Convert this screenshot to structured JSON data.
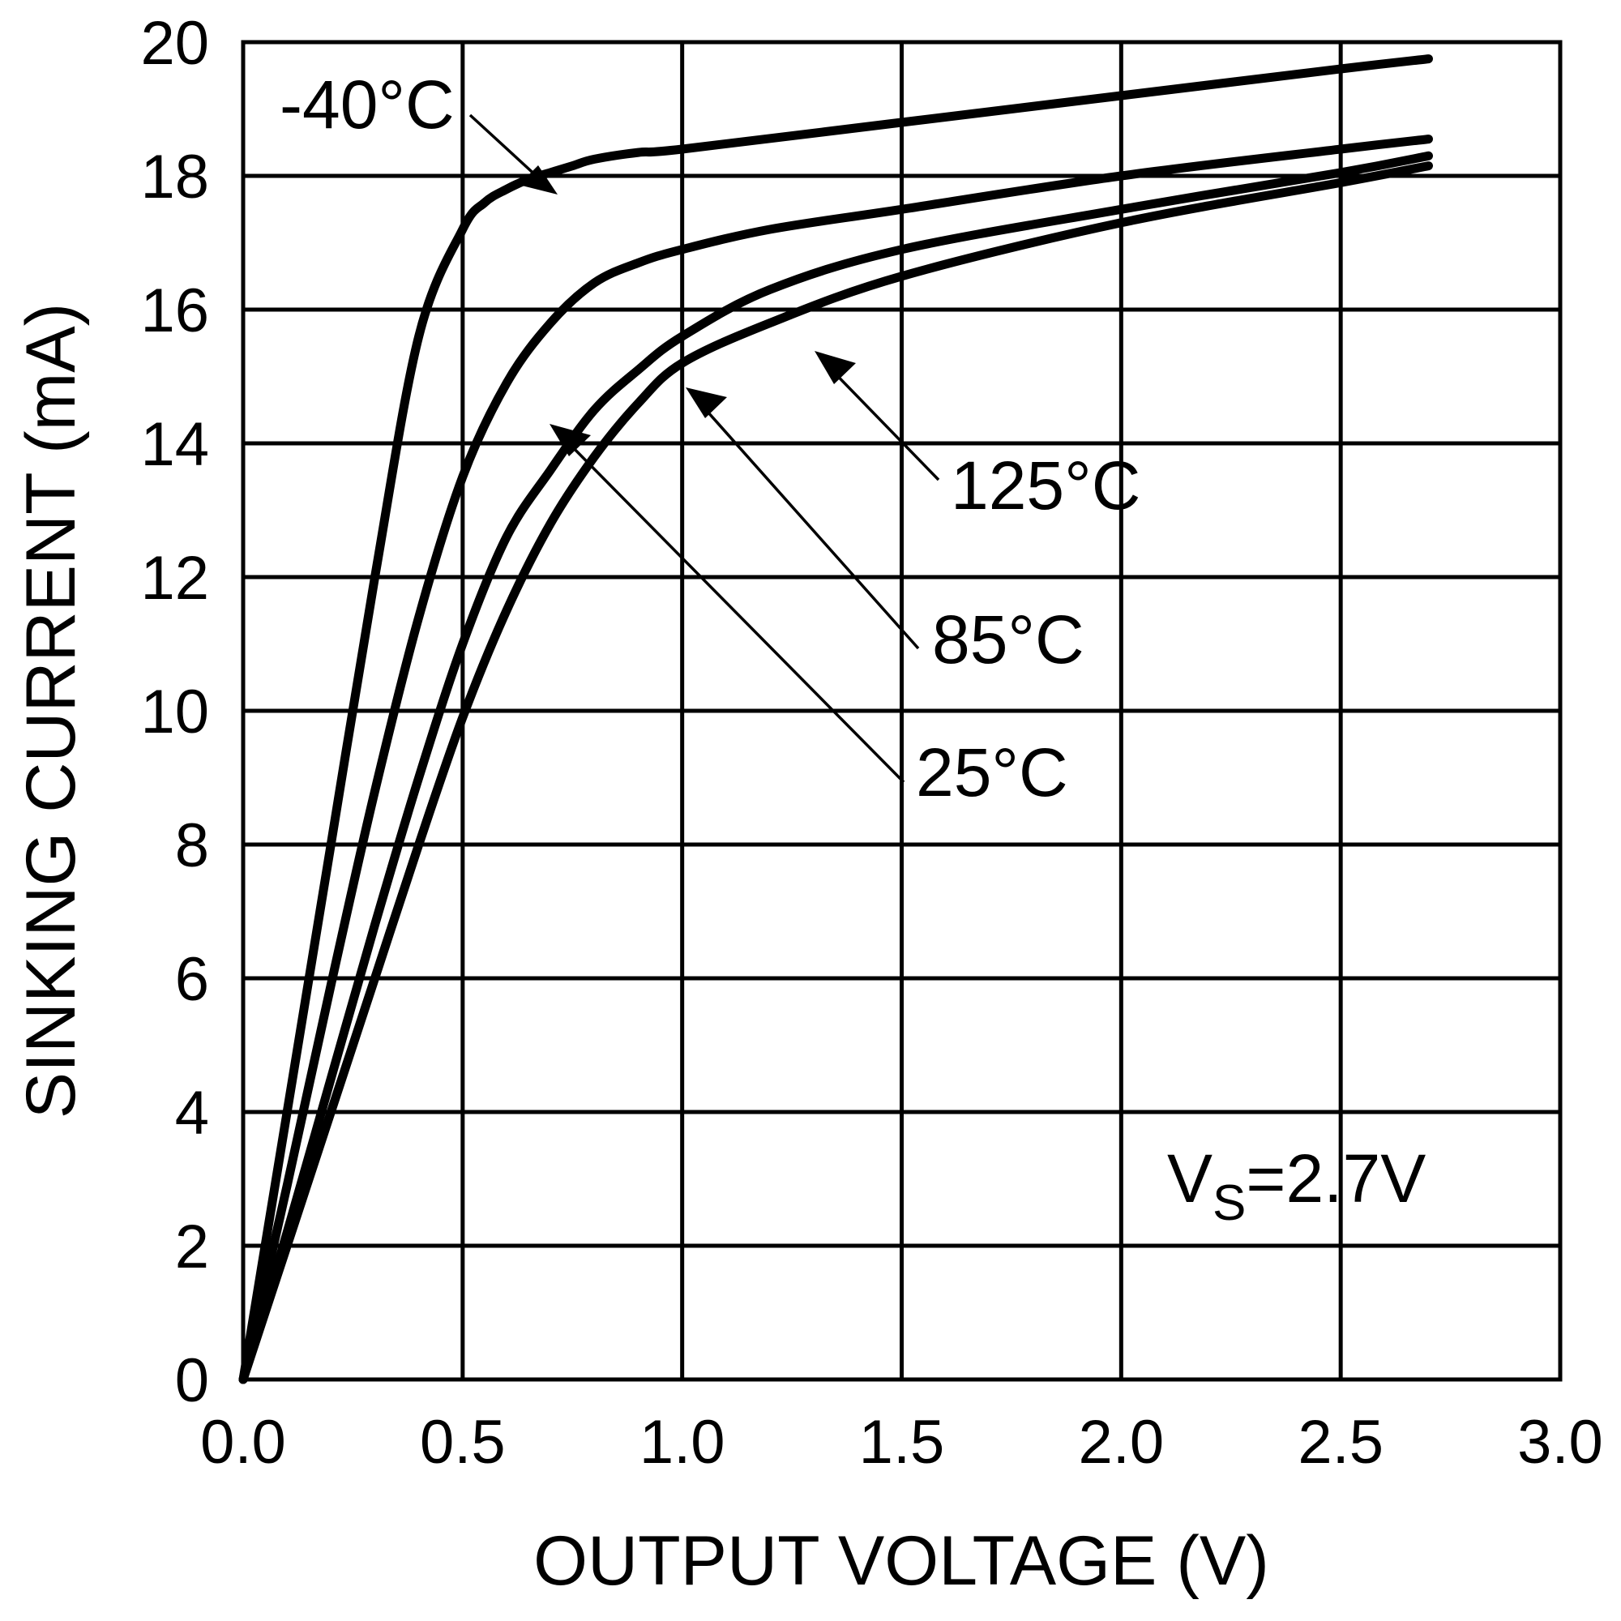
{
  "chart_data": {
    "type": "line",
    "title": "",
    "xlabel": "OUTPUT VOLTAGE (V)",
    "ylabel": "SINKING CURRENT (mA)",
    "xlim": [
      0,
      3
    ],
    "ylim": [
      0,
      20
    ],
    "x_ticks": [
      "0.0",
      "0.5",
      "1.0",
      "1.5",
      "2.0",
      "2.5",
      "3.0"
    ],
    "y_ticks": [
      "0",
      "2",
      "4",
      "6",
      "8",
      "10",
      "12",
      "14",
      "16",
      "18",
      "20"
    ],
    "grid": true,
    "annotation": {
      "main": "V",
      "sub": "S",
      "rest": "=2.7V"
    },
    "series": [
      {
        "name": "-40°C",
        "label": "-40°C",
        "x": [
          0.0,
          0.1,
          0.2,
          0.3,
          0.4,
          0.5,
          0.55,
          0.6,
          0.65,
          0.7,
          0.75,
          0.8,
          0.9,
          1.0,
          1.5,
          2.0,
          2.5,
          2.7
        ],
        "y": [
          0,
          4.0,
          8.0,
          12.0,
          15.6,
          17.2,
          17.6,
          17.8,
          17.95,
          18.05,
          18.15,
          18.25,
          18.35,
          18.4,
          18.8,
          19.2,
          19.6,
          19.75
        ]
      },
      {
        "name": "25°C",
        "label": "25°C",
        "x": [
          0.0,
          0.1,
          0.2,
          0.3,
          0.4,
          0.5,
          0.6,
          0.7,
          0.8,
          0.9,
          1.0,
          1.2,
          1.5,
          2.0,
          2.5,
          2.7
        ],
        "y": [
          0,
          2.9,
          5.9,
          8.8,
          11.4,
          13.5,
          14.9,
          15.8,
          16.4,
          16.7,
          16.9,
          17.2,
          17.5,
          18.0,
          18.4,
          18.55
        ]
      },
      {
        "name": "85°C",
        "label": "85°C",
        "x": [
          0.0,
          0.1,
          0.2,
          0.3,
          0.4,
          0.5,
          0.6,
          0.7,
          0.8,
          0.9,
          1.0,
          1.2,
          1.5,
          2.0,
          2.5,
          2.7
        ],
        "y": [
          0,
          2.2,
          4.5,
          6.8,
          9.0,
          11.0,
          12.6,
          13.6,
          14.5,
          15.1,
          15.6,
          16.3,
          16.9,
          17.5,
          18.05,
          18.3
        ]
      },
      {
        "name": "125°C",
        "label": "125°C",
        "x": [
          0.0,
          0.1,
          0.2,
          0.3,
          0.4,
          0.5,
          0.6,
          0.7,
          0.8,
          0.9,
          1.0,
          1.2,
          1.5,
          2.0,
          2.5,
          2.7
        ],
        "y": [
          0,
          2.0,
          4.0,
          6.0,
          8.0,
          9.9,
          11.5,
          12.8,
          13.8,
          14.6,
          15.2,
          15.8,
          16.5,
          17.3,
          17.9,
          18.15
        ]
      }
    ]
  }
}
